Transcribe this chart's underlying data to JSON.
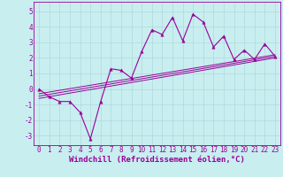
{
  "title": "",
  "xlabel": "Windchill (Refroidissement éolien,°C)",
  "ylabel": "",
  "bg_color": "#c8eef0",
  "line_color": "#990099",
  "grid_color": "#b0d8da",
  "xticks": [
    0,
    1,
    2,
    3,
    4,
    5,
    6,
    7,
    8,
    9,
    10,
    11,
    12,
    13,
    14,
    15,
    16,
    17,
    18,
    19,
    20,
    21,
    22,
    23
  ],
  "yticks": [
    -3,
    -2,
    -1,
    0,
    1,
    2,
    3,
    4,
    5
  ],
  "xlim": [
    -0.5,
    23.5
  ],
  "ylim": [
    -3.6,
    5.6
  ],
  "data_x": [
    0,
    1,
    2,
    3,
    4,
    5,
    6,
    7,
    8,
    9,
    10,
    11,
    12,
    13,
    14,
    15,
    16,
    17,
    18,
    19,
    20,
    21,
    22,
    23
  ],
  "data_y": [
    0.0,
    -0.5,
    -0.8,
    -0.8,
    -1.5,
    -3.2,
    -0.8,
    1.3,
    1.2,
    0.7,
    2.4,
    3.8,
    3.5,
    4.6,
    3.1,
    4.8,
    4.3,
    2.7,
    3.4,
    1.9,
    2.5,
    1.9,
    2.9,
    2.1
  ],
  "reg_lines": [
    {
      "x0": 0,
      "y0": -0.45,
      "x1": 23,
      "y1": 2.1
    },
    {
      "x0": 0,
      "y0": -0.3,
      "x1": 23,
      "y1": 2.2
    },
    {
      "x0": 0,
      "y0": -0.6,
      "x1": 23,
      "y1": 2.0
    }
  ],
  "font_family": "monospace",
  "xlabel_fontsize": 6.5,
  "tick_fontsize": 5.5
}
